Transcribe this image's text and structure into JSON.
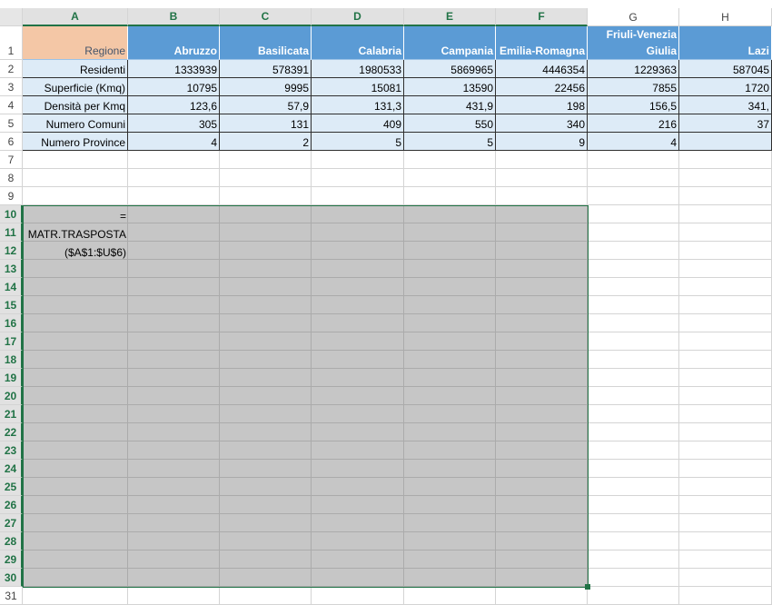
{
  "sheet": {
    "column_letters": [
      "A",
      "B",
      "C",
      "D",
      "E",
      "F",
      "G",
      "H"
    ],
    "row_numbers": [
      1,
      2,
      3,
      4,
      5,
      6,
      7,
      8,
      9,
      10,
      11,
      12,
      13,
      14,
      15,
      16,
      17,
      18,
      19,
      20,
      21,
      22,
      23,
      24,
      25,
      26,
      27,
      28,
      29,
      30,
      31
    ],
    "table": {
      "header": [
        "Regione",
        "Abruzzo",
        "Basilicata",
        "Calabria",
        "Campania",
        "Emilia-Romagna",
        "Friuli-Venezia Giulia",
        "Lazi"
      ],
      "rows": [
        [
          "Residenti",
          "1333939",
          "578391",
          "1980533",
          "5869965",
          "4446354",
          "1229363",
          "587045"
        ],
        [
          "Superficie (Kmq)",
          "10795",
          "9995",
          "15081",
          "13590",
          "22456",
          "7855",
          "1720"
        ],
        [
          "Densità per Kmq",
          "123,6",
          "57,9",
          "131,3",
          "431,9",
          "198",
          "156,5",
          "341,"
        ],
        [
          "Numero Comuni",
          "305",
          "131",
          "409",
          "550",
          "340",
          "216",
          "37"
        ],
        [
          "Numero Province",
          "4",
          "2",
          "5",
          "5",
          "9",
          "4",
          ""
        ]
      ]
    },
    "formula": [
      "=",
      "MATR.TRASPOSTA",
      "($A$1:$U$6)"
    ]
  }
}
